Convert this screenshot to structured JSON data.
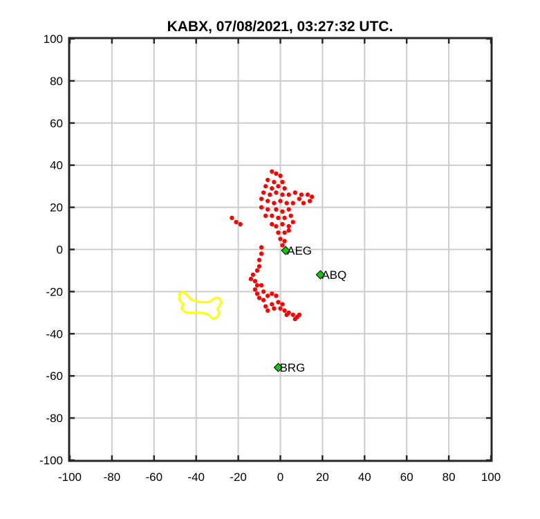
{
  "chart_data": {
    "type": "scatter",
    "title": "KABX, 07/08/2021, 03:27:32 UTC.",
    "xlabel": "",
    "ylabel": "",
    "xlim": [
      -100,
      100
    ],
    "ylim": [
      -100,
      100
    ],
    "x_ticks": [
      -100,
      -80,
      -60,
      -40,
      -20,
      0,
      20,
      40,
      60,
      80,
      100
    ],
    "y_ticks": [
      -100,
      -80,
      -60,
      -40,
      -20,
      0,
      20,
      40,
      60,
      80,
      100
    ],
    "grid": true,
    "stations": [
      {
        "name": "AEG",
        "x": 2.5,
        "y": -0.5
      },
      {
        "name": "ABQ",
        "x": 19,
        "y": -12
      },
      {
        "name": "BRG",
        "x": -1,
        "y": -56
      }
    ],
    "detections": [
      {
        "x": -4,
        "y": 37
      },
      {
        "x": -2,
        "y": 36
      },
      {
        "x": 0,
        "y": 35
      },
      {
        "x": -6,
        "y": 33
      },
      {
        "x": -3,
        "y": 32
      },
      {
        "x": 1,
        "y": 32
      },
      {
        "x": -7,
        "y": 30
      },
      {
        "x": -4,
        "y": 29
      },
      {
        "x": -1,
        "y": 30
      },
      {
        "x": 2,
        "y": 29
      },
      {
        "x": -8,
        "y": 27
      },
      {
        "x": -5,
        "y": 26
      },
      {
        "x": -2,
        "y": 27
      },
      {
        "x": 1,
        "y": 26
      },
      {
        "x": 4,
        "y": 26
      },
      {
        "x": 7,
        "y": 27
      },
      {
        "x": 10,
        "y": 26
      },
      {
        "x": 13,
        "y": 26
      },
      {
        "x": 15,
        "y": 25
      },
      {
        "x": 14,
        "y": 23
      },
      {
        "x": 11,
        "y": 22
      },
      {
        "x": 9,
        "y": 24
      },
      {
        "x": 6,
        "y": 22
      },
      {
        "x": -9,
        "y": 24
      },
      {
        "x": -6,
        "y": 23
      },
      {
        "x": -3,
        "y": 22
      },
      {
        "x": 0,
        "y": 23
      },
      {
        "x": 3,
        "y": 22
      },
      {
        "x": -9,
        "y": 20
      },
      {
        "x": -6,
        "y": 19
      },
      {
        "x": -2,
        "y": 19
      },
      {
        "x": 1,
        "y": 18
      },
      {
        "x": 4,
        "y": 19
      },
      {
        "x": -7,
        "y": 16
      },
      {
        "x": -4,
        "y": 16
      },
      {
        "x": -1,
        "y": 15
      },
      {
        "x": 2,
        "y": 15
      },
      {
        "x": 5,
        "y": 16
      },
      {
        "x": 6,
        "y": 13
      },
      {
        "x": 4,
        "y": 11
      },
      {
        "x": 1,
        "y": 12
      },
      {
        "x": -2,
        "y": 11
      },
      {
        "x": -4,
        "y": 12
      },
      {
        "x": -1,
        "y": 8
      },
      {
        "x": 2,
        "y": 8
      },
      {
        "x": 4,
        "y": 9
      },
      {
        "x": 0,
        "y": 5
      },
      {
        "x": 2,
        "y": 4
      },
      {
        "x": 1,
        "y": 2
      },
      {
        "x": -23,
        "y": 15
      },
      {
        "x": -21,
        "y": 13
      },
      {
        "x": -19,
        "y": 12
      },
      {
        "x": -9,
        "y": 1
      },
      {
        "x": -9,
        "y": -2
      },
      {
        "x": -10,
        "y": -5
      },
      {
        "x": -10,
        "y": -8
      },
      {
        "x": -11,
        "y": -10
      },
      {
        "x": -13,
        "y": -12
      },
      {
        "x": -14,
        "y": -14
      },
      {
        "x": -12,
        "y": -15
      },
      {
        "x": -11,
        "y": -17
      },
      {
        "x": -9,
        "y": -17
      },
      {
        "x": -12,
        "y": -19
      },
      {
        "x": -11,
        "y": -21
      },
      {
        "x": -8,
        "y": -20
      },
      {
        "x": -10,
        "y": -23
      },
      {
        "x": -8,
        "y": -24
      },
      {
        "x": -6,
        "y": -22
      },
      {
        "x": -4,
        "y": -21
      },
      {
        "x": -2,
        "y": -22
      },
      {
        "x": -7,
        "y": -27
      },
      {
        "x": -4,
        "y": -26
      },
      {
        "x": -1,
        "y": -25
      },
      {
        "x": 1,
        "y": -26
      },
      {
        "x": -6,
        "y": -29
      },
      {
        "x": -3,
        "y": -28
      },
      {
        "x": 0,
        "y": -28
      },
      {
        "x": 2,
        "y": -29
      },
      {
        "x": 4,
        "y": -30
      },
      {
        "x": 6,
        "y": -31
      },
      {
        "x": 8,
        "y": -32
      },
      {
        "x": 7,
        "y": -33
      },
      {
        "x": 9,
        "y": -31
      },
      {
        "x": 3,
        "y": -31
      }
    ],
    "yellow_contour": [
      [
        -48,
        -21
      ],
      [
        -46,
        -20
      ],
      [
        -44,
        -22
      ],
      [
        -42,
        -24
      ],
      [
        -38,
        -25
      ],
      [
        -34,
        -25
      ],
      [
        -31,
        -23
      ],
      [
        -29,
        -23
      ],
      [
        -28,
        -25
      ],
      [
        -29,
        -27
      ],
      [
        -30,
        -28
      ],
      [
        -29,
        -30
      ],
      [
        -30,
        -32
      ],
      [
        -32,
        -33
      ],
      [
        -34,
        -31
      ],
      [
        -37,
        -30
      ],
      [
        -41,
        -30
      ],
      [
        -45,
        -30
      ],
      [
        -47,
        -28
      ],
      [
        -46,
        -26
      ],
      [
        -48,
        -24
      ]
    ],
    "colors": {
      "detections": "#ff0000",
      "contour": "#ffff00",
      "station_marker": "#00cc00",
      "grid": "#cccccc",
      "axes": "#262626"
    }
  }
}
